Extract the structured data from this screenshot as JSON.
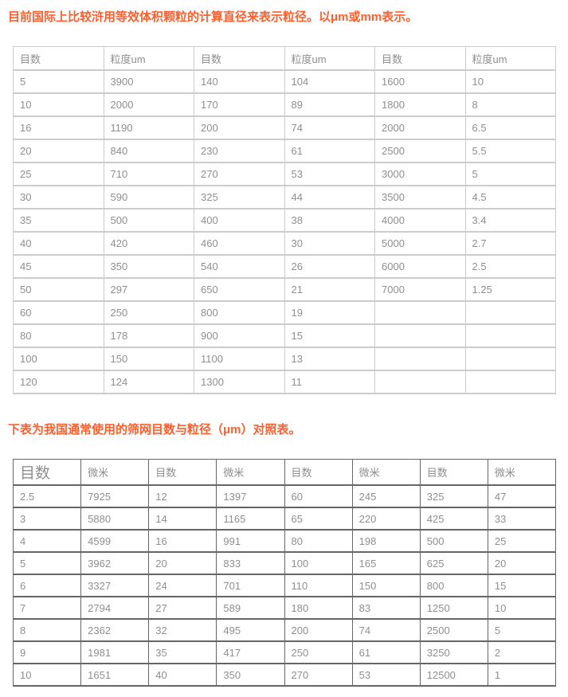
{
  "headings": {
    "first": "目前国际上比较浒用等效体积颗粒的计算直径来表示粒径。以μm或mm表示。",
    "second": "下表为我国通常使用的筛网目数与粒径（μm）对照表。"
  },
  "table1": {
    "headers": [
      "目数",
      "粒度um",
      "目数",
      "粒度um",
      "目数",
      "粒度um"
    ],
    "rows": [
      [
        "5",
        "3900",
        "140",
        "104",
        "1600",
        "10"
      ],
      [
        "10",
        "2000",
        "170",
        "89",
        "1800",
        "8"
      ],
      [
        "16",
        "1190",
        "200",
        "74",
        "2000",
        "6.5"
      ],
      [
        "20",
        "840",
        "230",
        "61",
        "2500",
        "5.5"
      ],
      [
        "25",
        "710",
        "270",
        "53",
        "3000",
        "5"
      ],
      [
        "30",
        "590",
        "325",
        "44",
        "3500",
        "4.5"
      ],
      [
        "35",
        "500",
        "400",
        "38",
        "4000",
        "3.4"
      ],
      [
        "40",
        "420",
        "460",
        "30",
        "5000",
        "2.7"
      ],
      [
        "45",
        "350",
        "540",
        "26",
        "6000",
        "2.5"
      ],
      [
        "50",
        "297",
        "650",
        "21",
        "7000",
        "1.25"
      ],
      [
        "60",
        "250",
        "800",
        "19",
        "",
        ""
      ],
      [
        "80",
        "178",
        "900",
        "15",
        "",
        ""
      ],
      [
        "100",
        "150",
        "1100",
        "13",
        "",
        ""
      ],
      [
        "120",
        "124",
        "1300",
        "11",
        "",
        ""
      ]
    ]
  },
  "table2": {
    "headers": [
      "目数",
      "微米",
      "目数",
      "微米",
      "目数",
      "微米",
      "目数",
      "微米"
    ],
    "rows": [
      [
        "2.5",
        "7925",
        "12",
        "1397",
        "60",
        "245",
        "325",
        "47"
      ],
      [
        "3",
        "5880",
        "14",
        "1165",
        "65",
        "220",
        "425",
        "33"
      ],
      [
        "4",
        "4599",
        "16",
        "991",
        "80",
        "198",
        "500",
        "25"
      ],
      [
        "5",
        "3962",
        "20",
        "833",
        "100",
        "165",
        "625",
        "20"
      ],
      [
        "6",
        "3327",
        "24",
        "701",
        "110",
        "150",
        "800",
        "15"
      ],
      [
        "7",
        "2794",
        "27",
        "589",
        "180",
        "83",
        "1250",
        "10"
      ],
      [
        "8",
        "2362",
        "32",
        "495",
        "200",
        "74",
        "2500",
        "5"
      ],
      [
        "9",
        "1981",
        "35",
        "417",
        "250",
        "61",
        "3250",
        "2"
      ],
      [
        "10",
        "1651",
        "40",
        "350",
        "270",
        "53",
        "12500",
        "1"
      ]
    ]
  },
  "colors": {
    "heading": "#ff5e2c",
    "cell_text": "#8f8f8f",
    "table1_border": "#cccccc",
    "table2_border": "#666666"
  }
}
